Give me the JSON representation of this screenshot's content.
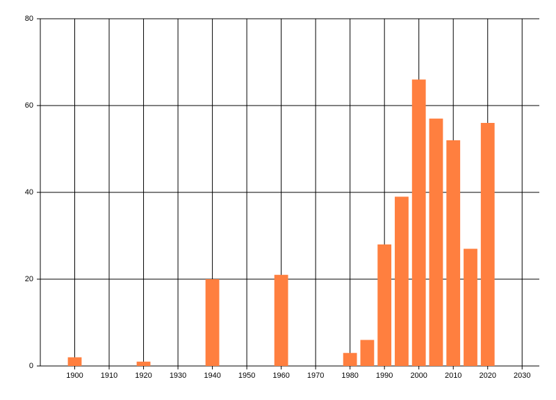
{
  "chart_data": {
    "type": "bar",
    "x": [
      1900,
      1920,
      1940,
      1960,
      1980,
      1985,
      1990,
      1995,
      2000,
      2005,
      2010,
      2015,
      2020
    ],
    "values": [
      2,
      1,
      20,
      21,
      3,
      6,
      28,
      39,
      66,
      57,
      52,
      27,
      56
    ],
    "color": "#ff7f3f",
    "xlim": [
      1890,
      2035
    ],
    "xticks": [
      1900,
      1910,
      1920,
      1930,
      1940,
      1950,
      1960,
      1970,
      1980,
      1990,
      2000,
      2010,
      2020,
      2030
    ],
    "ylim": [
      0,
      80
    ],
    "yticks": [
      0,
      20,
      40,
      60,
      80
    ],
    "grid": true
  }
}
